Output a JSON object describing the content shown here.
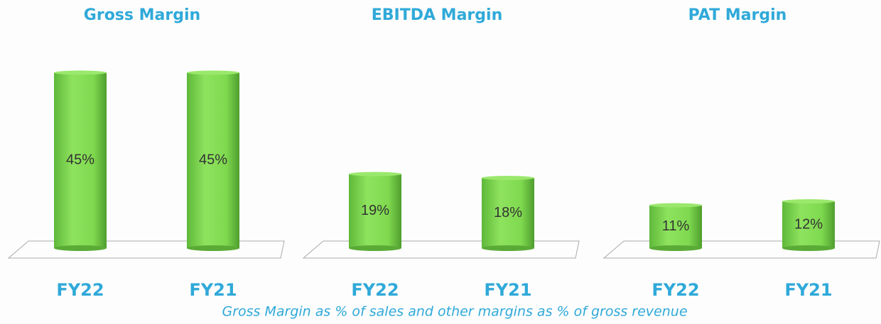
{
  "chart_data": [
    {
      "type": "bar",
      "title": "Gross Margin",
      "categories": [
        "FY22",
        "FY21"
      ],
      "values": [
        45,
        45
      ],
      "value_labels": [
        "45%",
        "45%"
      ],
      "color": "#7fd94f"
    },
    {
      "type": "bar",
      "title": "EBITDA Margin",
      "categories": [
        "FY22",
        "FY21"
      ],
      "values": [
        19,
        18
      ],
      "value_labels": [
        "19%",
        "18%"
      ],
      "color": "#7fd94f"
    },
    {
      "type": "bar",
      "title": "PAT Margin",
      "categories": [
        "FY22",
        "FY21"
      ],
      "values": [
        11,
        12
      ],
      "value_labels": [
        "11%",
        "12%"
      ],
      "color": "#7fd94f"
    }
  ],
  "caption": "Gross Margin as % of sales and other margins as % of gross revenue"
}
